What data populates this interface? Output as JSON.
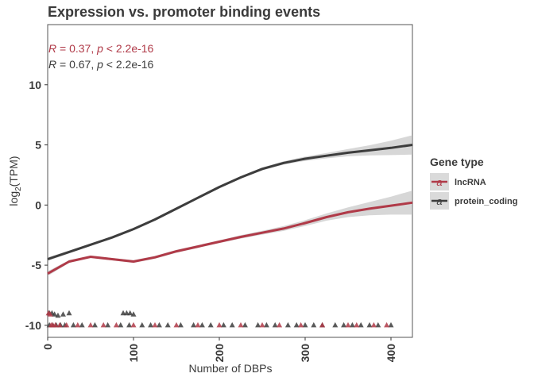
{
  "chart_data": {
    "type": "scatter",
    "title": "Expression vs. promoter binding events",
    "xlabel": "Number of DBPs",
    "ylabel": "log2(TPM)",
    "ylabel_main": "log",
    "ylabel_sub": "2",
    "ylabel_rest": "(TPM)",
    "xlim": [
      0,
      425
    ],
    "ylim": [
      -11,
      15
    ],
    "x_ticks": [
      0,
      100,
      200,
      300,
      400
    ],
    "y_ticks": [
      -10,
      -5,
      0,
      5,
      10
    ],
    "y_tick_labels": [
      "-10",
      "-5",
      "0",
      "5",
      "10"
    ],
    "grid": false,
    "legend": {
      "title": "Gene type",
      "position": "right",
      "items": [
        {
          "label": "lncRNA",
          "color": "#b03a48",
          "glyph": "a"
        },
        {
          "label": "protein_coding",
          "color": "#3d3d3d",
          "glyph": "a"
        }
      ]
    },
    "annotations": [
      {
        "R_symbol": "R",
        "text": " = 0.37, ",
        "p_symbol": "p",
        "rest": " < 2.2e-16",
        "color": "#b03a48"
      },
      {
        "R_symbol": "R",
        "text": " = 0.67, ",
        "p_symbol": "p",
        "rest": " < 2.2e-16",
        "color": "#3d3d3d"
      }
    ],
    "series": [
      {
        "name": "protein_coding",
        "color": "#3d3d3d",
        "smooth_x": [
          0,
          25,
          50,
          75,
          100,
          125,
          150,
          175,
          200,
          225,
          250,
          275,
          300,
          325,
          350,
          375,
          400,
          425
        ],
        "smooth_y": [
          -4.5,
          -3.9,
          -3.3,
          -2.7,
          -2.0,
          -1.2,
          -0.3,
          0.6,
          1.5,
          2.3,
          3.0,
          3.5,
          3.85,
          4.1,
          4.35,
          4.55,
          4.75,
          5.0
        ],
        "band_halfwidth": [
          0.15,
          0.12,
          0.1,
          0.1,
          0.1,
          0.1,
          0.1,
          0.1,
          0.1,
          0.1,
          0.12,
          0.14,
          0.18,
          0.22,
          0.3,
          0.42,
          0.6,
          0.8
        ],
        "points_x": [
          2,
          5,
          8,
          12,
          18,
          25,
          88,
          92,
          96,
          100,
          2,
          6,
          10,
          15,
          20,
          30,
          40,
          55,
          70,
          85,
          95,
          110,
          120,
          130,
          140,
          155,
          170,
          180,
          190,
          205,
          215,
          230,
          245,
          255,
          265,
          280,
          290,
          300,
          310,
          320,
          335,
          345,
          355,
          365,
          375,
          385,
          400
        ],
        "points_y": [
          -9,
          -9,
          -9.1,
          -9.2,
          -9.1,
          -9,
          -9,
          -9,
          -9,
          -9.1,
          -10,
          -10,
          -10,
          -10,
          -10,
          -10,
          -10,
          -10,
          -10,
          -10,
          -10,
          -10,
          -10,
          -10,
          -10,
          -10,
          -10,
          -10,
          -10,
          -10,
          -10,
          -10,
          -10,
          -10,
          -10,
          -10,
          -10,
          -10,
          -10,
          -10,
          -10,
          -10,
          -10,
          -10,
          -10,
          -10,
          -10
        ]
      },
      {
        "name": "lncRNA",
        "color": "#b03a48",
        "smooth_x": [
          0,
          25,
          50,
          75,
          100,
          125,
          150,
          175,
          200,
          225,
          250,
          275,
          300,
          325,
          350,
          375,
          400,
          425
        ],
        "smooth_y": [
          -5.7,
          -4.7,
          -4.3,
          -4.5,
          -4.7,
          -4.35,
          -3.85,
          -3.45,
          -3.05,
          -2.65,
          -2.3,
          -1.95,
          -1.5,
          -1.0,
          -0.6,
          -0.3,
          -0.05,
          0.2
        ],
        "band_halfwidth": [
          0.2,
          0.12,
          0.1,
          0.1,
          0.12,
          0.12,
          0.12,
          0.12,
          0.12,
          0.14,
          0.16,
          0.2,
          0.24,
          0.3,
          0.4,
          0.55,
          0.75,
          1.0
        ],
        "points_x": [
          1,
          3,
          4,
          6,
          9,
          14,
          22,
          35,
          50,
          65,
          80,
          100,
          125,
          150,
          175,
          200,
          225,
          250,
          270,
          295,
          320,
          350,
          360,
          380,
          395
        ],
        "points_y": [
          -9,
          -9.1,
          -10,
          -10,
          -10,
          -10,
          -10,
          -10,
          -10,
          -10,
          -10,
          -10,
          -10,
          -10,
          -10,
          -10,
          -10,
          -10,
          -10,
          -10,
          -10,
          -10,
          -10,
          -10,
          -10
        ]
      }
    ]
  }
}
